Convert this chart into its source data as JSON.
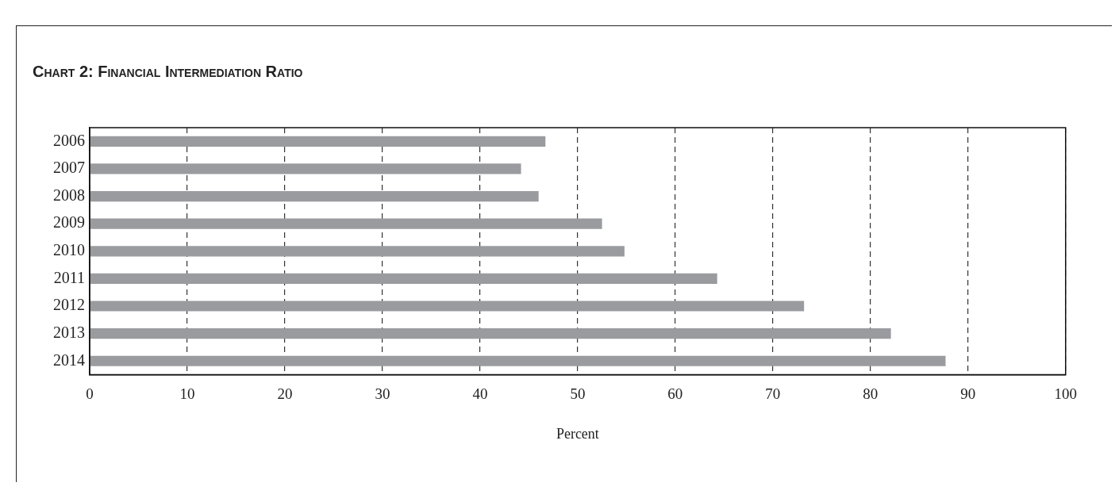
{
  "chart_data": {
    "type": "bar",
    "title": "Chart 2: Financial Intermediation Ratio",
    "xlabel": "Percent",
    "orientation": "horizontal",
    "categories": [
      "2006",
      "2007",
      "2008",
      "2009",
      "2010",
      "2011",
      "2012",
      "2013",
      "2014"
    ],
    "values": [
      46.7,
      44.2,
      46.0,
      52.5,
      54.8,
      64.3,
      73.2,
      82.1,
      87.7
    ],
    "color": "#9a9b9f",
    "xlim": [
      0,
      100
    ],
    "xticks": [
      0,
      10,
      20,
      30,
      40,
      50,
      60,
      70,
      80,
      90,
      100
    ],
    "grid": "x",
    "legend": false
  }
}
